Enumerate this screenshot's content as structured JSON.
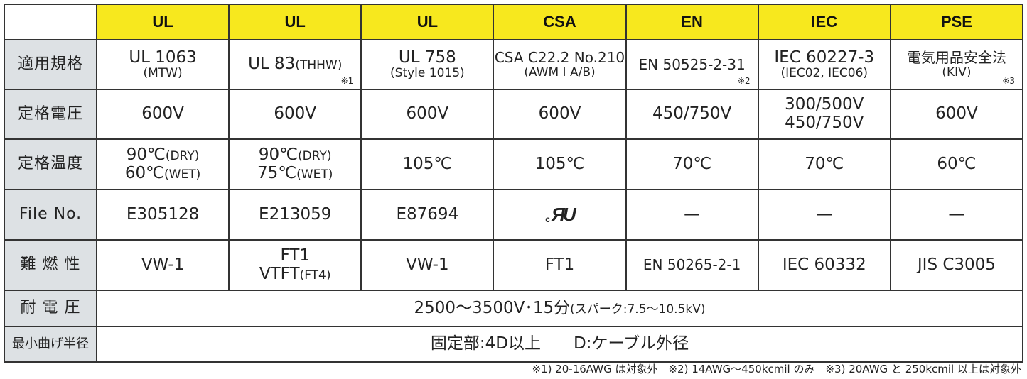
{
  "header": [
    "",
    "UL",
    "UL",
    "UL",
    "CSA",
    "EN",
    "IEC",
    "PSE"
  ],
  "rows": [
    {
      "label": "適用規格",
      "cells": [
        {
          "lines": [
            [
              {
                "t": "UL 1063"
              }
            ],
            [
              {
                "t": "(MTW)",
                "s": 1
              }
            ]
          ]
        },
        {
          "lines": [
            [
              {
                "t": "UL 83"
              },
              {
                "t": "(THHW)",
                "s": 1
              }
            ]
          ],
          "note": "※1"
        },
        {
          "lines": [
            [
              {
                "t": "UL 758"
              }
            ],
            [
              {
                "t": "(Style 1015)",
                "s": 1
              }
            ]
          ]
        },
        {
          "lines": [
            [
              {
                "t": "CSA C22.2 No.210",
                "s": 2
              }
            ],
            [
              {
                "t": "(AWM I A/B)",
                "s": 1
              }
            ]
          ]
        },
        {
          "lines": [
            [
              {
                "t": "EN 50525-2-31",
                "s": 2
              }
            ]
          ],
          "note": "※2"
        },
        {
          "lines": [
            [
              {
                "t": "IEC 60227-3"
              }
            ],
            [
              {
                "t": "(IEC02, IEC06)",
                "s": 1
              }
            ]
          ]
        },
        {
          "lines": [
            [
              {
                "t": "電気用品安全法",
                "s": 2
              }
            ],
            [
              {
                "t": "(KIV)",
                "s": 1
              }
            ]
          ],
          "note": "※3"
        }
      ]
    },
    {
      "label": "定格電圧",
      "cells": [
        {
          "lines": [
            [
              {
                "t": "600V"
              }
            ]
          ]
        },
        {
          "lines": [
            [
              {
                "t": "600V"
              }
            ]
          ]
        },
        {
          "lines": [
            [
              {
                "t": "600V"
              }
            ]
          ]
        },
        {
          "lines": [
            [
              {
                "t": "600V"
              }
            ]
          ]
        },
        {
          "lines": [
            [
              {
                "t": "450/750V"
              }
            ]
          ]
        },
        {
          "lines": [
            [
              {
                "t": "300/500V"
              }
            ],
            [
              {
                "t": "450/750V"
              }
            ]
          ]
        },
        {
          "lines": [
            [
              {
                "t": "600V"
              }
            ]
          ]
        }
      ]
    },
    {
      "label": "定格温度",
      "cells": [
        {
          "lines": [
            [
              {
                "t": "90℃"
              },
              {
                "t": "(DRY)",
                "s": 1
              }
            ],
            [
              {
                "t": "60℃"
              },
              {
                "t": "(WET)",
                "s": 1
              }
            ]
          ]
        },
        {
          "lines": [
            [
              {
                "t": "90℃"
              },
              {
                "t": "(DRY)",
                "s": 1
              }
            ],
            [
              {
                "t": "75℃"
              },
              {
                "t": "(WET)",
                "s": 1
              }
            ]
          ]
        },
        {
          "lines": [
            [
              {
                "t": "105℃"
              }
            ]
          ]
        },
        {
          "lines": [
            [
              {
                "t": "105℃"
              }
            ]
          ]
        },
        {
          "lines": [
            [
              {
                "t": "70℃"
              }
            ]
          ]
        },
        {
          "lines": [
            [
              {
                "t": "70℃"
              }
            ]
          ]
        },
        {
          "lines": [
            [
              {
                "t": "60℃"
              }
            ]
          ]
        }
      ]
    },
    {
      "label": "File No.",
      "cells": [
        {
          "lines": [
            [
              {
                "t": "E305128"
              }
            ]
          ]
        },
        {
          "lines": [
            [
              {
                "t": "E213059"
              }
            ]
          ]
        },
        {
          "lines": [
            [
              {
                "t": "E87694"
              }
            ]
          ]
        },
        {
          "logo": "cRU"
        },
        {
          "lines": [
            [
              {
                "t": "—"
              }
            ]
          ]
        },
        {
          "lines": [
            [
              {
                "t": "—"
              }
            ]
          ]
        },
        {
          "lines": [
            [
              {
                "t": "—"
              }
            ]
          ]
        }
      ]
    },
    {
      "label": "難 燃 性",
      "cells": [
        {
          "lines": [
            [
              {
                "t": "VW-1"
              }
            ]
          ]
        },
        {
          "lines": [
            [
              {
                "t": "FT1"
              }
            ],
            [
              {
                "t": "VTFT"
              },
              {
                "t": "(FT4)",
                "s": 1
              }
            ]
          ]
        },
        {
          "lines": [
            [
              {
                "t": "VW-1"
              }
            ]
          ]
        },
        {
          "lines": [
            [
              {
                "t": "FT1"
              }
            ]
          ]
        },
        {
          "lines": [
            [
              {
                "t": "EN 50265-2-1",
                "s": 2
              }
            ]
          ]
        },
        {
          "lines": [
            [
              {
                "t": "IEC 60332"
              }
            ]
          ]
        },
        {
          "lines": [
            [
              {
                "t": "JIS C3005"
              }
            ]
          ]
        }
      ]
    },
    {
      "label": "耐 電 圧",
      "span": [
        {
          "lines": [
            [
              {
                "t": "2500〜3500V･15分"
              },
              {
                "t": "(スパーク:7.5〜10.5kV)",
                "s": 1
              }
            ]
          ]
        }
      ]
    },
    {
      "label": "最小曲げ半径",
      "span": [
        {
          "lines": [
            [
              {
                "t": "固定部:4D以上　　D:ケーブル外径"
              }
            ]
          ]
        }
      ]
    }
  ],
  "footnote": "※1) 20-16AWG は対象外　※2) 14AWG〜450kcmil のみ　※3) 20AWG と 250kcmil 以上は対象外"
}
